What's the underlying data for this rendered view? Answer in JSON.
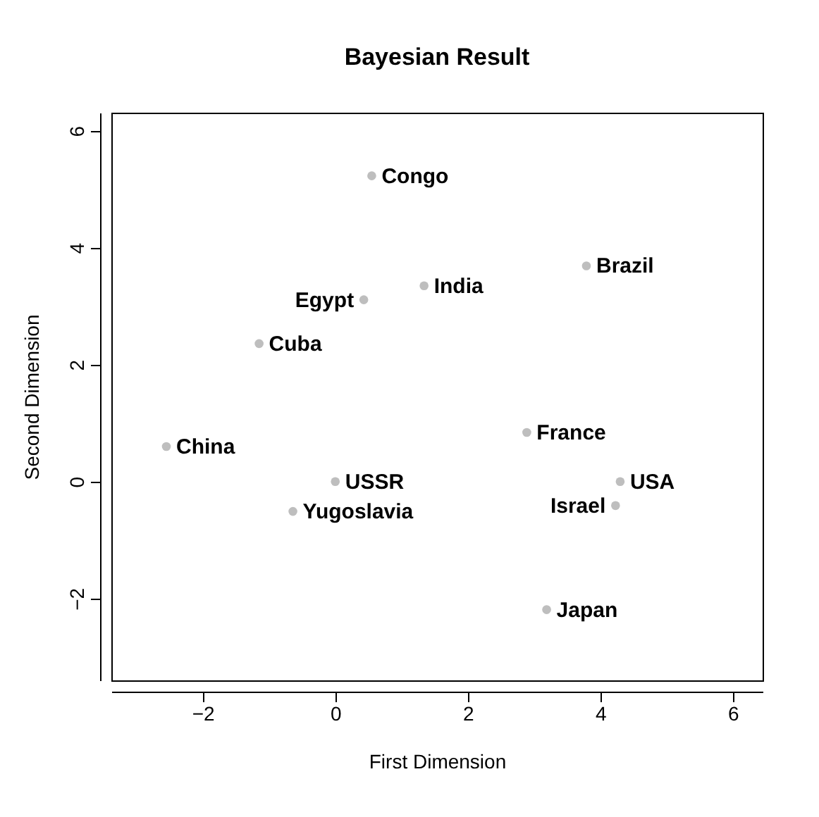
{
  "chart_data": {
    "type": "scatter",
    "title": "Bayesian Result",
    "xlabel": "First Dimension",
    "ylabel": "Second Dimension",
    "x": [
      0.55,
      3.79,
      1.34,
      0.43,
      -1.15,
      -2.55,
      2.89,
      0,
      4.3,
      4.23,
      -0.64,
      3.19
    ],
    "series": [
      {
        "color": "#bebebe",
        "values": [
          5.23,
          3.69,
          3.35,
          3.11,
          2.36,
          0.6,
          0.84,
          0,
          0,
          -0.41,
          -0.51,
          -2.19
        ]
      }
    ],
    "annotations": [
      {
        "text": "Congo",
        "x": 0.55,
        "y": 5.23
      },
      {
        "text": "Brazil",
        "x": 3.79,
        "y": 3.69
      },
      {
        "text": "India",
        "x": 1.34,
        "y": 3.35
      },
      {
        "text": "Egypt",
        "x": 0.43,
        "y": 3.11
      },
      {
        "text": "Cuba",
        "x": -1.15,
        "y": 2.36
      },
      {
        "text": "China",
        "x": -2.55,
        "y": 0.6
      },
      {
        "text": "France",
        "x": 2.89,
        "y": 0.84
      },
      {
        "text": "USSR",
        "x": 0,
        "y": 0
      },
      {
        "text": "USA",
        "x": 4.3,
        "y": 0
      },
      {
        "text": "Israel",
        "x": 4.23,
        "y": -0.41
      },
      {
        "text": "Yugoslavia",
        "x": -0.64,
        "y": -0.51
      },
      {
        "text": "Japan",
        "x": 3.19,
        "y": -2.19
      }
    ],
    "xlim": [
      -3.38,
      6.45
    ],
    "ylim": [
      -3.4,
      6.31
    ],
    "xticks": [
      -2,
      0,
      2,
      4,
      6
    ],
    "yticks": [
      -2,
      0,
      2,
      4,
      6
    ],
    "grid": false,
    "marker": "circle"
  }
}
